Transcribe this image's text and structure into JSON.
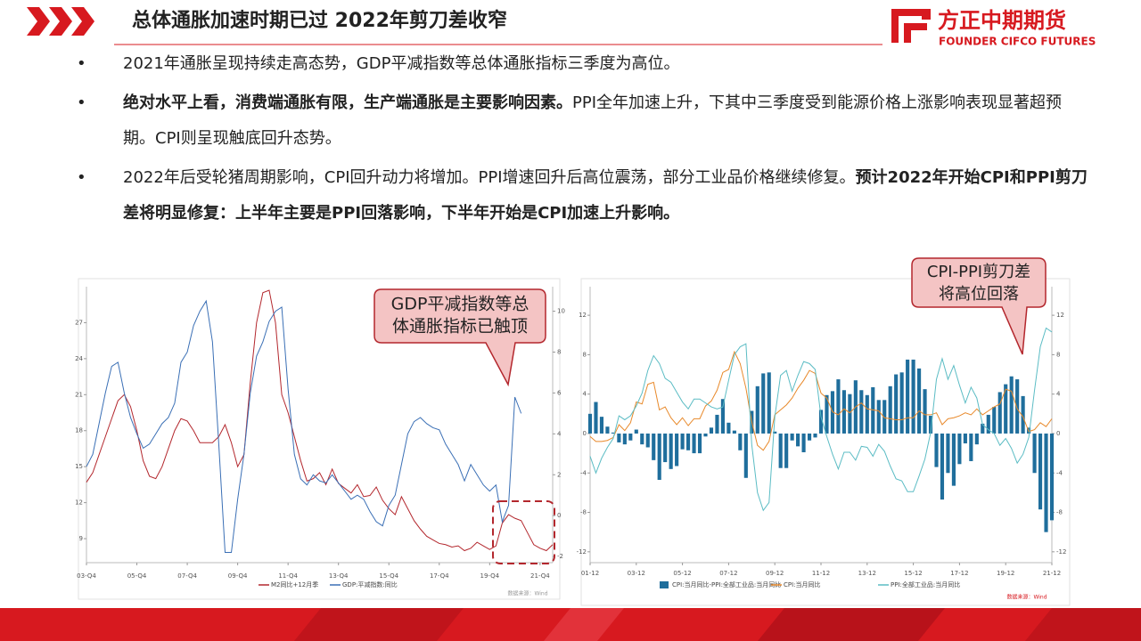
{
  "header": {
    "title": "总体通胀加速时期已过  2022年剪刀差收窄",
    "logo_name": "方正中期期货",
    "logo_sub": "FOUNDER CIFCO FUTURES"
  },
  "bullets": [
    {
      "segments": [
        {
          "text": "2021年通胀呈现持续走高态势，GDP平减指数等总体通胀指标三季度为高位。",
          "bold": false
        }
      ]
    },
    {
      "segments": [
        {
          "text": "绝对水平上看，消费端通胀有限，生产端通胀是主要影响因素。",
          "bold": true
        },
        {
          "text": "PPI全年加速上升，下其中三季度受到能源价格上涨影响表现显著超预期。CPI则呈现触底回升态势。",
          "bold": false
        }
      ]
    },
    {
      "segments": [
        {
          "text": "2022年后受轮猪周期影响，CPI回升动力将增加。PPI增速回升后高位震荡，部分工业品价格继续修复。",
          "bold": false
        },
        {
          "text": "预计2022年开始CPI和PPI剪刀差将明显修复：上半年主要是PPI回落影响，下半年开始是CPI加速上升影响。",
          "bold": true
        }
      ]
    }
  ],
  "callouts": [
    {
      "lines": [
        "GDP平减指数等总",
        "体通胀指标已触顶"
      ]
    },
    {
      "lines": [
        "CPI-PPI剪刀差",
        "将高位回落"
      ]
    }
  ],
  "chart_data": [
    {
      "type": "line",
      "categories": [
        "03-Q4",
        null,
        null,
        null,
        null,
        null,
        null,
        null,
        "05-Q4",
        null,
        null,
        null,
        null,
        null,
        null,
        null,
        "07-Q4",
        null,
        null,
        null,
        null,
        null,
        null,
        null,
        "09-Q4",
        null,
        null,
        null,
        null,
        null,
        null,
        null,
        "11-Q4",
        null,
        null,
        null,
        null,
        null,
        null,
        null,
        "13-Q4",
        null,
        null,
        null,
        null,
        null,
        null,
        null,
        "15-Q4",
        null,
        null,
        null,
        null,
        null,
        null,
        null,
        "17-Q4",
        null,
        null,
        null,
        null,
        null,
        null,
        null,
        "19-Q4",
        null,
        null,
        null,
        null,
        null,
        null,
        null,
        "21-Q4",
        null,
        null
      ],
      "series": [
        {
          "name": "M2同比+12月季",
          "color": "#b3272d",
          "type": "line",
          "values": [
            13.7,
            14.5,
            16,
            17.5,
            19,
            20.5,
            21,
            20,
            18,
            15.5,
            14.2,
            14,
            15,
            16.5,
            18,
            19,
            18.8,
            18,
            17,
            17,
            17,
            17.5,
            18.5,
            17,
            15,
            16,
            22,
            27,
            29.5,
            29.7,
            27,
            21,
            19.5,
            17.5,
            15.5,
            13.8,
            14,
            14.5,
            13.5,
            14.8,
            13.6,
            13.2,
            12.8,
            13.5,
            12.5,
            12.6,
            13.3,
            12.2,
            11.5,
            11,
            12.5,
            11.5,
            10.5,
            9.8,
            9.2,
            8.9,
            8.6,
            8.5,
            8.3,
            8.4,
            8,
            8.2,
            8.7,
            8.4,
            8.1,
            8.4,
            10.3,
            11,
            10.7,
            10.5,
            9.5,
            8.5,
            8.2,
            8,
            8.5
          ]
        },
        {
          "name": "GDP:平减指数:同比",
          "color": "#3a6fb5",
          "type": "line",
          "axis": "y2",
          "values": [
            2.4,
            3,
            4.5,
            6,
            7.3,
            7.5,
            6,
            4.8,
            4,
            3.3,
            3.5,
            4,
            4.5,
            4.8,
            5.5,
            7.5,
            8,
            9.3,
            10,
            10.5,
            8.5,
            3.5,
            -1.8,
            -1.8,
            0.8,
            3,
            6,
            7.8,
            8.5,
            9.5,
            10,
            10.2,
            6.2,
            3,
            1.8,
            1.5,
            2,
            1.7,
            1.6,
            2,
            1.6,
            1.2,
            0.8,
            1,
            0.8,
            0.2,
            -0.3,
            -0.5,
            0.5,
            1,
            2.5,
            4,
            4.6,
            4.8,
            4.5,
            4.3,
            4.2,
            3.5,
            3,
            2.5,
            1.7,
            2.5,
            2,
            1.5,
            1.2,
            1.5,
            -0.3,
            0.5,
            5.8,
            5,
            null,
            null,
            null,
            null,
            null
          ]
        }
      ],
      "ylim": [
        7,
        30
      ],
      "yticks": [
        9,
        12,
        15,
        18,
        21,
        24,
        27
      ],
      "y2lim": [
        -2.3,
        11.2
      ],
      "y2ticks": [
        -2,
        0,
        2,
        4,
        6,
        8,
        10
      ],
      "source": "数据来源：Wind"
    },
    {
      "type": "combo",
      "categories": [
        "01-12",
        null,
        null,
        null,
        null,
        null,
        null,
        null,
        "03-12",
        null,
        null,
        null,
        null,
        null,
        null,
        null,
        "05-12",
        null,
        null,
        null,
        null,
        null,
        null,
        null,
        "07-12",
        null,
        null,
        null,
        null,
        null,
        null,
        null,
        "09-12",
        null,
        null,
        null,
        null,
        null,
        null,
        null,
        "11-12",
        null,
        null,
        null,
        null,
        null,
        null,
        null,
        "13-12",
        null,
        null,
        null,
        null,
        null,
        null,
        null,
        "15-12",
        null,
        null,
        null,
        null,
        null,
        null,
        null,
        "17-12",
        null,
        null,
        null,
        null,
        null,
        null,
        null,
        "19-12",
        null,
        null,
        null,
        null,
        null,
        null,
        null,
        "21-12"
      ],
      "series": [
        {
          "name": "CPI:当月同比-PPI:全部工业品:当月同比",
          "color": "#1f6e9c",
          "type": "bar",
          "values": [
            2.0,
            3.2,
            1.7,
            0.7,
            0.1,
            -0.9,
            -1.1,
            -0.7,
            0.4,
            -1.1,
            -1.4,
            -2.7,
            -4.7,
            -2.9,
            -3.6,
            -3.3,
            -1.6,
            -1.7,
            -2.0,
            -2.0,
            -0.3,
            0.6,
            1.9,
            3.5,
            1.1,
            0.3,
            -1.7,
            -4.5,
            2.3,
            4.8,
            6.1,
            6.2,
            0.2,
            -3.5,
            -3.5,
            -0.7,
            -1.3,
            -1.9,
            -0.7,
            -0.4,
            2.4,
            3.9,
            4.3,
            5.5,
            4.4,
            4.0,
            5.4,
            4.4,
            3.9,
            4.7,
            3.4,
            3.4,
            4.8,
            6.0,
            6.2,
            7.5,
            7.5,
            6.6,
            4.5,
            1.8,
            -3.4,
            -6.7,
            -4.0,
            -5.3,
            -3.1,
            -1.0,
            -2.8,
            -1.1,
            1.0,
            1.9,
            2.7,
            4.2,
            5.0,
            5.8,
            5.5,
            3.8,
            0.6,
            -4.0,
            -7.7,
            -10.0,
            -8.8
          ]
        },
        {
          "name": "CPI:当月同比",
          "color": "#e8892a",
          "type": "line",
          "axis": "y2",
          "values": [
            -0.3,
            -0.8,
            -0.8,
            -0.7,
            -0.4,
            0.9,
            0.3,
            1.1,
            3.2,
            3.0,
            5.0,
            5.2,
            2.4,
            2.7,
            1.6,
            0.9,
            1.6,
            0.8,
            1.5,
            1.5,
            2.8,
            3.3,
            4.4,
            6.2,
            6.5,
            8.3,
            7.1,
            4.6,
            1.2,
            -1.2,
            -1.7,
            -0.8,
            1.9,
            2.4,
            2.9,
            3.6,
            4.6,
            5.4,
            6.4,
            6.1,
            4.1,
            3.6,
            2.2,
            1.9,
            2.5,
            2.1,
            2.7,
            3.1,
            2.5,
            2.4,
            2.3,
            1.6,
            1.5,
            1.4,
            1.4,
            1.6,
            1.6,
            2.3,
            1.9,
            1.9,
            2.1,
            0.9,
            1.5,
            1.6,
            1.8,
            2.1,
            1.9,
            2.5,
            1.9,
            2.3,
            2.7,
            3.0,
            4.5,
            4.3,
            2.5,
            1.7,
            0.2,
            0.4,
            1.1,
            0.7,
            1.5
          ]
        },
        {
          "name": "PPI:全部工业品:当月同比",
          "color": "#5bbcc4",
          "type": "line",
          "axis": "y2",
          "values": [
            -2.3,
            -4,
            -2.5,
            -1.4,
            -0.5,
            1.8,
            1.4,
            1.8,
            2.8,
            4.1,
            6.4,
            7.9,
            7.1,
            5.6,
            5.2,
            4.2,
            3.2,
            2.5,
            3.5,
            3.5,
            3.1,
            2.7,
            2.5,
            2.7,
            5.4,
            8.0,
            8.8,
            9.1,
            -1.1,
            -6.0,
            -7.8,
            -7.0,
            1.7,
            5.9,
            6.4,
            4.3,
            5.9,
            7.3,
            7.1,
            6.5,
            1.7,
            -0.3,
            -2.1,
            -3.6,
            -1.9,
            -1.9,
            -2.7,
            -1.3,
            -1.4,
            -2.3,
            -1.1,
            -1.8,
            -3.3,
            -4.6,
            -4.8,
            -5.9,
            -5.9,
            -4.3,
            -2.6,
            0.1,
            5.5,
            7.6,
            5.5,
            6.9,
            4.9,
            3.1,
            4.7,
            3.6,
            0.9,
            0.4,
            0,
            -1.2,
            -0.5,
            -1.5,
            -3.0,
            -2.1,
            -0.4,
            4.4,
            8.8,
            10.7,
            10.3
          ]
        }
      ],
      "ylim": [
        -13.1,
        14.9
      ],
      "yticks": [
        -12,
        -8,
        -4,
        0,
        4,
        8,
        12
      ],
      "y2lim": [
        -13.1,
        14.9
      ],
      "y2ticks": [
        -12,
        -8,
        -4,
        0,
        4,
        8,
        12
      ],
      "source": "数据来源：Wind"
    }
  ]
}
